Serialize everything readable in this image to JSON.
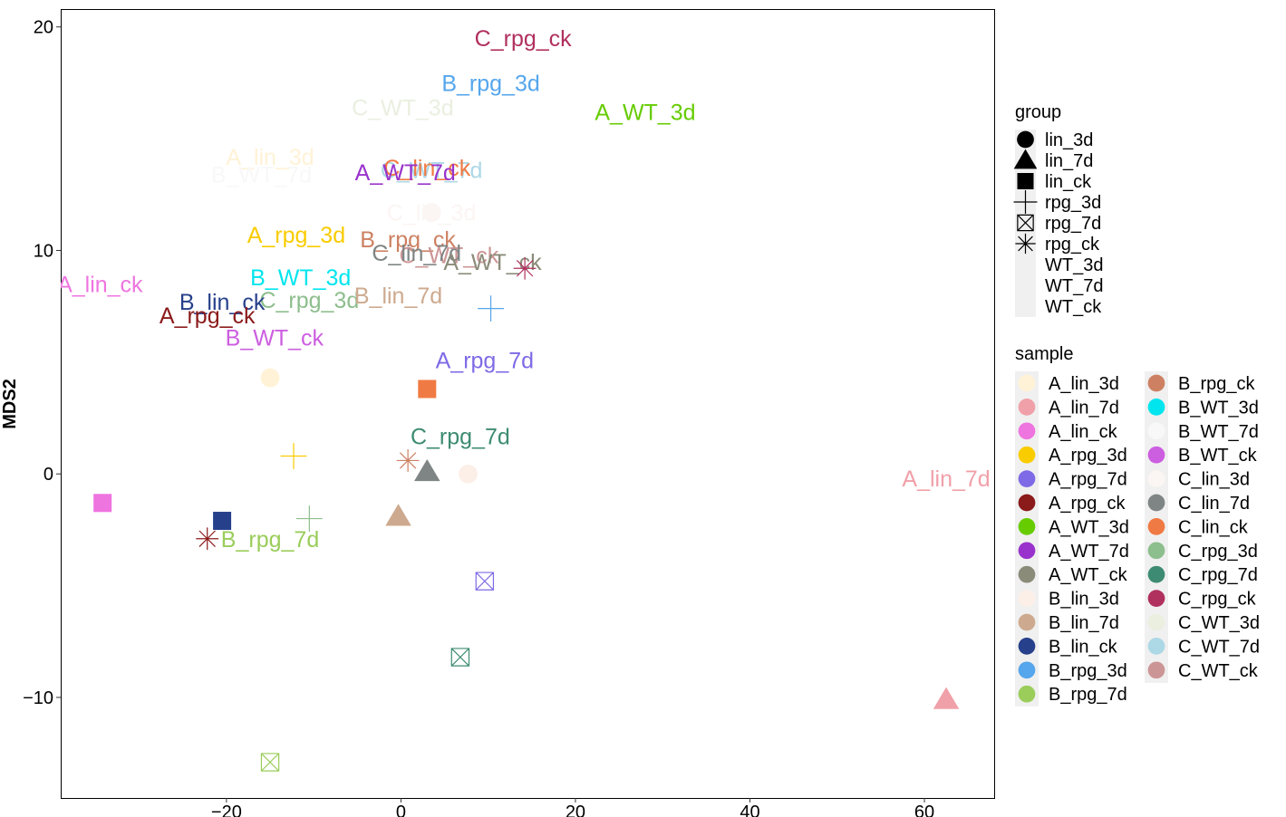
{
  "chart_data": {
    "type": "scatter",
    "xlabel": "",
    "ylabel": "MDS2",
    "xlim": [
      -39,
      68
    ],
    "ylim": [
      -14.5,
      20.8
    ],
    "x_ticks": [
      -20,
      0,
      20,
      40,
      60
    ],
    "y_ticks": [
      -10,
      0,
      10,
      20
    ],
    "x_tick_labels": [
      "−20",
      "0",
      "20",
      "40",
      "60"
    ],
    "y_tick_labels": [
      "−10",
      "0",
      "10",
      "20"
    ],
    "grid": false,
    "legend_position": "right",
    "legends": {
      "group": {
        "title": "group",
        "entries": [
          {
            "label": "lin_3d",
            "shape": "circle"
          },
          {
            "label": "lin_7d",
            "shape": "triangle"
          },
          {
            "label": "lin_ck",
            "shape": "square"
          },
          {
            "label": "rpg_3d",
            "shape": "plus"
          },
          {
            "label": "rpg_7d",
            "shape": "boxx"
          },
          {
            "label": "rpg_ck",
            "shape": "asterisk"
          },
          {
            "label": "WT_3d",
            "shape": "none"
          },
          {
            "label": "WT_7d",
            "shape": "none"
          },
          {
            "label": "WT_ck",
            "shape": "none"
          }
        ]
      },
      "sample": {
        "title": "sample",
        "entries": [
          {
            "label": "A_lin_3d",
            "color": "#fff2d6"
          },
          {
            "label": "A_lin_7d",
            "color": "#f0a0a8"
          },
          {
            "label": "A_lin_ck",
            "color": "#ee74e0"
          },
          {
            "label": "A_rpg_3d",
            "color": "#f9cc00"
          },
          {
            "label": "A_rpg_7d",
            "color": "#7e6ae6"
          },
          {
            "label": "A_rpg_ck",
            "color": "#8b1a1a"
          },
          {
            "label": "A_WT_3d",
            "color": "#66cc00"
          },
          {
            "label": "A_WT_7d",
            "color": "#9932cc"
          },
          {
            "label": "A_WT_ck",
            "color": "#8b8b7a"
          },
          {
            "label": "B_lin_3d",
            "color": "#fcefe8"
          },
          {
            "label": "B_lin_7d",
            "color": "#cdaa8f"
          },
          {
            "label": "B_lin_ck",
            "color": "#27408b"
          },
          {
            "label": "B_rpg_3d",
            "color": "#55a6ec"
          },
          {
            "label": "B_rpg_7d",
            "color": "#9acd5a"
          },
          {
            "label": "B_rpg_ck",
            "color": "#cd8162"
          },
          {
            "label": "B_WT_3d",
            "color": "#00e5ee"
          },
          {
            "label": "B_WT_7d",
            "color": "#f8f8f8"
          },
          {
            "label": "B_WT_ck",
            "color": "#cc5ee0"
          },
          {
            "label": "C_lin_3d",
            "color": "#fbf5f3"
          },
          {
            "label": "C_lin_7d",
            "color": "#7f8585"
          },
          {
            "label": "C_lin_ck",
            "color": "#f07a43"
          },
          {
            "label": "C_rpg_3d",
            "color": "#8dbe8d"
          },
          {
            "label": "C_rpg_7d",
            "color": "#3d8b72"
          },
          {
            "label": "C_rpg_ck",
            "color": "#b0305e"
          },
          {
            "label": "C_WT_3d",
            "color": "#eaefe0"
          },
          {
            "label": "C_WT_7d",
            "color": "#add8e6"
          },
          {
            "label": "C_WT_ck",
            "color": "#cc9595"
          }
        ]
      }
    },
    "points": [
      {
        "sample": "A_lin_3d",
        "group": "lin_3d",
        "x": -15,
        "y": 4.3
      },
      {
        "sample": "A_lin_7d",
        "group": "lin_7d",
        "x": 62.5,
        "y": -10.1
      },
      {
        "sample": "A_lin_ck",
        "group": "lin_ck",
        "x": -34.2,
        "y": -1.3
      },
      {
        "sample": "A_rpg_3d",
        "group": "rpg_3d",
        "x": -12.3,
        "y": 0.8
      },
      {
        "sample": "A_rpg_7d",
        "group": "rpg_7d",
        "x": 9.6,
        "y": -4.8
      },
      {
        "sample": "A_rpg_ck",
        "group": "rpg_ck",
        "x": -22.2,
        "y": -2.9
      },
      {
        "sample": "A_WT_3d",
        "group": "WT_3d",
        "x": 28,
        "y": 16.2
      },
      {
        "sample": "A_WT_7d",
        "group": "WT_7d",
        "x": 0.5,
        "y": 13.5
      },
      {
        "sample": "A_WT_ck",
        "group": "WT_ck",
        "x": 14,
        "y": 9.5
      },
      {
        "sample": "B_lin_3d",
        "group": "lin_3d",
        "x": 7.7,
        "y": 0
      },
      {
        "sample": "B_lin_7d",
        "group": "lin_7d",
        "x": -0.3,
        "y": -1.9
      },
      {
        "sample": "B_lin_ck",
        "group": "lin_ck",
        "x": -20.5,
        "y": -2.1
      },
      {
        "sample": "B_rpg_3d",
        "group": "rpg_3d",
        "x": 10.3,
        "y": 7.4
      },
      {
        "sample": "B_rpg_7d",
        "group": "rpg_7d",
        "x": -15,
        "y": -12.9
      },
      {
        "sample": "B_rpg_ck",
        "group": "rpg_ck",
        "x": 0.8,
        "y": 0.6
      },
      {
        "sample": "B_WT_3d",
        "group": "WT_3d",
        "x": -11.5,
        "y": 8.8
      },
      {
        "sample": "B_WT_7d",
        "group": "WT_7d",
        "x": -16,
        "y": 13.5
      },
      {
        "sample": "B_WT_ck",
        "group": "WT_ck",
        "x": -14.5,
        "y": 6.2
      },
      {
        "sample": "C_lin_3d",
        "group": "lin_3d",
        "x": 3.5,
        "y": 11.7
      },
      {
        "sample": "C_lin_7d",
        "group": "lin_7d",
        "x": 3,
        "y": 0.1
      },
      {
        "sample": "C_lin_ck",
        "group": "lin_ck",
        "x": 3,
        "y": 3.8
      },
      {
        "sample": "C_rpg_3d",
        "group": "rpg_3d",
        "x": -10.5,
        "y": -2
      },
      {
        "sample": "C_rpg_7d",
        "group": "rpg_7d",
        "x": 6.8,
        "y": -8.2
      },
      {
        "sample": "C_rpg_ck",
        "group": "rpg_ck",
        "x": 14.2,
        "y": 9.2
      },
      {
        "sample": "C_WT_3d",
        "group": "WT_3d",
        "x": 0.2,
        "y": 16.4
      },
      {
        "sample": "C_WT_7d",
        "group": "WT_7d",
        "x": 3.5,
        "y": 13.6
      },
      {
        "sample": "C_WT_ck",
        "group": "WT_ck",
        "x": 5.5,
        "y": 9.8
      }
    ],
    "labels": [
      {
        "text": "C_rpg_ck",
        "x": 14,
        "y": 19.5,
        "sample": "C_rpg_ck"
      },
      {
        "text": "B_rpg_3d",
        "x": 10.3,
        "y": 17.5,
        "sample": "B_rpg_3d"
      },
      {
        "text": "C_WT_3d",
        "x": 0.2,
        "y": 16.4,
        "sample": "C_WT_3d"
      },
      {
        "text": "A_WT_3d",
        "x": 28,
        "y": 16.2,
        "sample": "A_WT_3d"
      },
      {
        "text": "A_lin_3d",
        "x": -15,
        "y": 14.2,
        "sample": "A_lin_3d"
      },
      {
        "text": "B_WT_7d",
        "x": -16,
        "y": 13.4,
        "sample": "B_WT_7d"
      },
      {
        "text": "C_WT_7d",
        "x": 3.5,
        "y": 13.6,
        "sample": "C_WT_7d"
      },
      {
        "text": "C_lin_ck",
        "x": 3,
        "y": 13.7,
        "sample": "C_lin_ck"
      },
      {
        "text": "A_WT_7d",
        "x": 0.5,
        "y": 13.5,
        "sample": "A_WT_7d"
      },
      {
        "text": "C_lin_3d",
        "x": 3.5,
        "y": 11.7,
        "sample": "C_lin_3d"
      },
      {
        "text": "A_rpg_3d",
        "x": -12,
        "y": 10.7,
        "sample": "A_rpg_3d"
      },
      {
        "text": "B_rpg_ck",
        "x": 0.8,
        "y": 10.5,
        "sample": "B_rpg_ck"
      },
      {
        "text": "C_WT_ck",
        "x": 5.5,
        "y": 9.8,
        "sample": "C_WT_ck"
      },
      {
        "text": "C_lin_7d",
        "x": 1.8,
        "y": 9.9,
        "sample": "C_lin_7d"
      },
      {
        "text": "A_WT_ck",
        "x": 10.5,
        "y": 9.5,
        "sample": "A_WT_ck"
      },
      {
        "text": "A_lin_ck",
        "x": -34.5,
        "y": 8.5,
        "sample": "A_lin_ck"
      },
      {
        "text": "B_WT_3d",
        "x": -11.5,
        "y": 8.8,
        "sample": "B_WT_3d"
      },
      {
        "text": "C_rpg_3d",
        "x": -10.5,
        "y": 7.8,
        "sample": "C_rpg_3d"
      },
      {
        "text": "B_lin_7d",
        "x": -0.3,
        "y": 8,
        "sample": "B_lin_7d"
      },
      {
        "text": "B_lin_ck",
        "x": -20.5,
        "y": 7.7,
        "sample": "B_lin_ck"
      },
      {
        "text": "A_rpg_ck",
        "x": -22.2,
        "y": 7.1,
        "sample": "A_rpg_ck"
      },
      {
        "text": "B_WT_ck",
        "x": -14.5,
        "y": 6.1,
        "sample": "B_WT_ck"
      },
      {
        "text": "A_rpg_7d",
        "x": 9.6,
        "y": 5.1,
        "sample": "A_rpg_7d"
      },
      {
        "text": "C_rpg_7d",
        "x": 6.8,
        "y": 1.7,
        "sample": "C_rpg_7d"
      },
      {
        "text": "A_lin_7d",
        "x": 62.5,
        "y": -0.2,
        "sample": "A_lin_7d"
      },
      {
        "text": "B_rpg_7d",
        "x": -15,
        "y": -2.9,
        "sample": "B_rpg_7d"
      }
    ]
  }
}
